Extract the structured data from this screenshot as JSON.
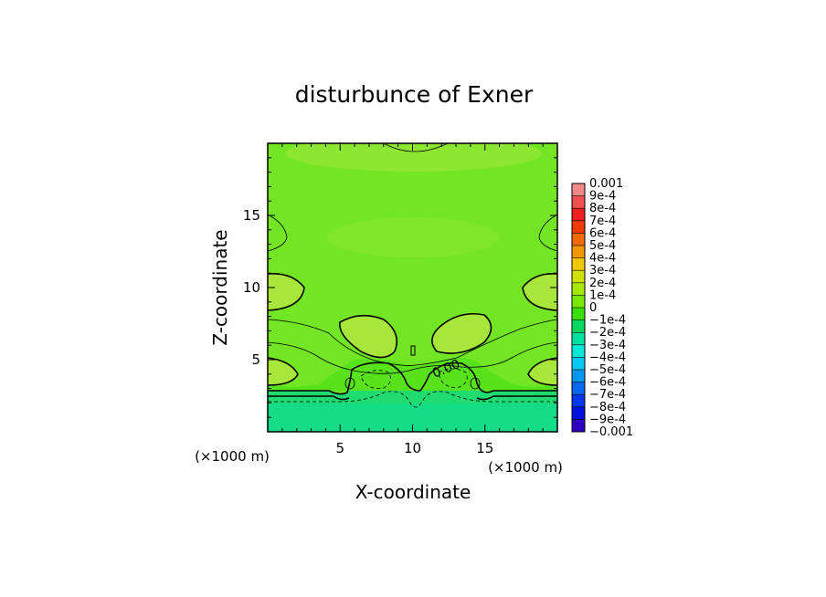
{
  "chart_data": {
    "type": "heatmap",
    "title": "disturbunce of Exner",
    "xlabel": "X-coordinate",
    "ylabel": "Z-coordinate",
    "x_unit_label": "(×1000 m)",
    "y_unit_label": "(×1000 m)",
    "xlim": [
      0,
      20
    ],
    "ylim": [
      0,
      20
    ],
    "x_ticks": [
      "5",
      "10",
      "15"
    ],
    "y_ticks": [
      "5",
      "10",
      "15"
    ],
    "contour_label": "0.00",
    "colorbar": {
      "levels": [
        "0.001",
        "9e-4",
        "8e-4",
        "7e-4",
        "6e-4",
        "5e-4",
        "4e-4",
        "3e-4",
        "2e-4",
        "1e-4",
        "0",
        "−1e-4",
        "−2e-4",
        "−3e-4",
        "−4e-4",
        "−5e-4",
        "−6e-4",
        "−7e-4",
        "−8e-4",
        "−9e-4",
        "−0.001"
      ],
      "colors": [
        "#f08888",
        "#f05050",
        "#f02020",
        "#f03a00",
        "#f06a00",
        "#f09800",
        "#f0c800",
        "#d0e000",
        "#a8e800",
        "#78e800",
        "#38e000",
        "#00d860",
        "#00e0a0",
        "#00e8d8",
        "#00c8f0",
        "#0098f0",
        "#0068f0",
        "#0038f0",
        "#0010e0",
        "#3000c0",
        "#6000a0"
      ]
    },
    "field_colors": {
      "positive_weak": "#72e624",
      "positive_mid": "#8ce632",
      "positive_strong": "#a8e63c",
      "near_zero": "#58e21c",
      "negative_weak": "#20dc70",
      "negative_mid": "#14dc86"
    }
  }
}
